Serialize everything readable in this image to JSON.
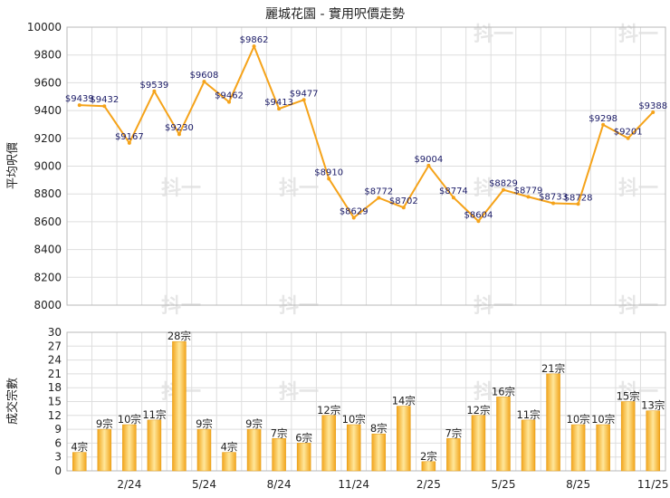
{
  "chart_data": [
    {
      "type": "line",
      "title": "麗城花園 - 實用呎價走勢",
      "ylabel": "平均呎價",
      "ylim": [
        8000,
        10000
      ],
      "yticks": [
        8000,
        8200,
        8400,
        8600,
        8800,
        9000,
        9200,
        9400,
        9600,
        9800,
        10000
      ],
      "xtick_labels": [
        "2/24",
        "5/24",
        "8/24",
        "11/24",
        "2/25",
        "5/25",
        "8/25",
        "11/25"
      ],
      "grid": true,
      "color": "#F5A31A",
      "values": [
        9439,
        9432,
        9167,
        9539,
        9230,
        9608,
        9462,
        9862,
        9413,
        9477,
        8910,
        8629,
        8772,
        8702,
        9004,
        8774,
        8604,
        8829,
        8779,
        8733,
        8728,
        9298,
        9201,
        9388
      ],
      "value_labels": [
        "$9439",
        "$9432",
        "$9167",
        "$9539",
        "$9230",
        "$9608",
        "$9462",
        "$9862",
        "$9413",
        "$9477",
        "$8910",
        "$8629",
        "$8772",
        "$8702",
        "$9004",
        "$8774",
        "$8604",
        "$8829",
        "$8779",
        "$8733",
        "$8728",
        "$9298",
        "$9201",
        "$9388"
      ]
    },
    {
      "type": "bar",
      "ylabel": "成交宗數",
      "ylim": [
        0,
        30
      ],
      "yticks": [
        0,
        3,
        6,
        9,
        12,
        15,
        18,
        21,
        24,
        27,
        30
      ],
      "xtick_labels": [
        "2/24",
        "5/24",
        "8/24",
        "11/24",
        "2/25",
        "5/25",
        "8/25",
        "11/25"
      ],
      "grid": true,
      "color": "#F5A31A",
      "values": [
        4,
        9,
        10,
        11,
        28,
        9,
        4,
        9,
        7,
        6,
        12,
        10,
        8,
        14,
        2,
        7,
        12,
        16,
        11,
        21,
        10,
        10,
        15,
        13
      ],
      "value_labels": [
        "4宗",
        "9宗",
        "10宗",
        "11宗",
        "28宗",
        "9宗",
        "4宗",
        "9宗",
        "7宗",
        "6宗",
        "12宗",
        "10宗",
        "8宗",
        "14宗",
        "2宗",
        "7宗",
        "12宗",
        "16宗",
        "11宗",
        "21宗",
        "10宗",
        "10宗",
        "15宗",
        "13宗"
      ]
    }
  ],
  "watermark": "抖一"
}
